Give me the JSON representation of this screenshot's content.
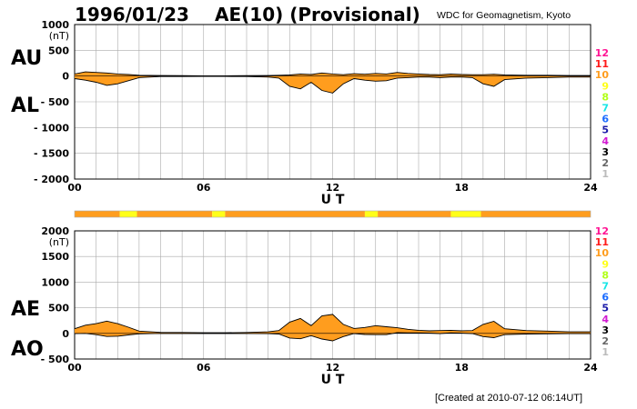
{
  "header": {
    "date": "1996/01/23",
    "title": "AE(10) (Provisional)",
    "source": "WDC for Geomagnetism, Kyoto"
  },
  "footer": {
    "created": "[Created at 2010-07-12 06:14UT]"
  },
  "colors": {
    "fill": "#ff9d1e",
    "fill_high": "#ffff19",
    "line": "#000000",
    "grid": "#aaaaaa"
  },
  "level_legend": [
    {
      "label": "12",
      "color": "#ff1493"
    },
    {
      "label": "11",
      "color": "#ff1a1a"
    },
    {
      "label": "10",
      "color": "#ff9d1e"
    },
    {
      "label": "9",
      "color": "#ffff19"
    },
    {
      "label": "8",
      "color": "#b2ff19"
    },
    {
      "label": "7",
      "color": "#19e6e6"
    },
    {
      "label": "6",
      "color": "#1a6bff"
    },
    {
      "label": "5",
      "color": "#1a1aa8"
    },
    {
      "label": "4",
      "color": "#d21ad2"
    },
    {
      "label": "3",
      "color": "#000000"
    },
    {
      "label": "2",
      "color": "#666666"
    },
    {
      "label": "1",
      "color": "#bbbbbb"
    }
  ],
  "chart_data": [
    {
      "type": "area",
      "panel": "AU/AL",
      "series_labels": [
        "AU",
        "AL"
      ],
      "xlabel": "U T",
      "ylabel": "(nT)",
      "xlim": [
        0,
        24
      ],
      "ylim": [
        -2000,
        1000
      ],
      "xticks": [
        "00",
        "06",
        "12",
        "18",
        "24"
      ],
      "yticks": [
        "1000",
        "500",
        "0",
        "- 500",
        "- 1000",
        "- 1500",
        "- 2000"
      ],
      "grid": true,
      "series": [
        {
          "name": "AU",
          "x": [
            0,
            0.5,
            1,
            1.5,
            2,
            2.5,
            3,
            4,
            5,
            6,
            7,
            8,
            9,
            9.5,
            10,
            10.5,
            11,
            11.5,
            12,
            12.5,
            13,
            13.5,
            14,
            14.5,
            15,
            15.5,
            16,
            16.5,
            17,
            17.5,
            18,
            18.5,
            19,
            19.5,
            20,
            21,
            22,
            23,
            24
          ],
          "values": [
            40,
            80,
            70,
            60,
            40,
            30,
            15,
            10,
            8,
            5,
            5,
            8,
            10,
            15,
            20,
            40,
            30,
            60,
            40,
            25,
            45,
            35,
            50,
            40,
            70,
            50,
            40,
            30,
            25,
            40,
            30,
            25,
            25,
            35,
            20,
            15,
            15,
            10,
            10
          ]
        },
        {
          "name": "AL",
          "x": [
            0,
            0.5,
            1,
            1.5,
            2,
            2.5,
            3,
            4,
            5,
            6,
            7,
            8,
            9,
            9.5,
            10,
            10.5,
            11,
            11.5,
            12,
            12.5,
            13,
            13.5,
            14,
            14.5,
            15,
            15.5,
            16,
            16.5,
            17,
            17.5,
            18,
            18.5,
            19,
            19.5,
            20,
            21,
            22,
            23,
            24
          ],
          "values": [
            -50,
            -80,
            -120,
            -180,
            -150,
            -90,
            -30,
            -10,
            -10,
            -8,
            -8,
            -10,
            -20,
            -40,
            -200,
            -250,
            -120,
            -280,
            -330,
            -150,
            -50,
            -80,
            -100,
            -90,
            -40,
            -30,
            -20,
            -20,
            -30,
            -20,
            -20,
            -30,
            -150,
            -200,
            -70,
            -40,
            -30,
            -20,
            -20
          ]
        }
      ]
    },
    {
      "type": "area",
      "panel": "AE/AO",
      "series_labels": [
        "AE",
        "AO"
      ],
      "xlabel": "U T",
      "ylabel": "(nT)",
      "xlim": [
        0,
        24
      ],
      "ylim": [
        -500,
        2000
      ],
      "xticks": [
        "00",
        "06",
        "12",
        "18",
        "24"
      ],
      "yticks": [
        "2000",
        "1500",
        "1000",
        "500",
        "0",
        "- 500"
      ],
      "grid": true,
      "series": [
        {
          "name": "AE",
          "x": [
            0,
            0.5,
            1,
            1.5,
            2,
            2.5,
            3,
            4,
            5,
            6,
            7,
            8,
            9,
            9.5,
            10,
            10.5,
            11,
            11.5,
            12,
            12.5,
            13,
            13.5,
            14,
            14.5,
            15,
            15.5,
            16,
            16.5,
            17,
            17.5,
            18,
            18.5,
            19,
            19.5,
            20,
            21,
            22,
            23,
            24
          ],
          "values": [
            90,
            160,
            190,
            240,
            190,
            120,
            45,
            20,
            18,
            13,
            13,
            18,
            30,
            55,
            220,
            290,
            150,
            340,
            370,
            175,
            95,
            115,
            150,
            130,
            110,
            80,
            60,
            50,
            55,
            60,
            50,
            55,
            175,
            235,
            90,
            55,
            45,
            30,
            30
          ]
        },
        {
          "name": "AO",
          "x": [
            0,
            0.5,
            1,
            1.5,
            2,
            2.5,
            3,
            4,
            5,
            6,
            7,
            8,
            9,
            9.5,
            10,
            10.5,
            11,
            11.5,
            12,
            12.5,
            13,
            13.5,
            14,
            14.5,
            15,
            15.5,
            16,
            16.5,
            17,
            17.5,
            18,
            18.5,
            19,
            19.5,
            20,
            21,
            22,
            23,
            24
          ],
          "values": [
            -5,
            0,
            -25,
            -60,
            -55,
            -30,
            -8,
            0,
            -1,
            -2,
            -2,
            -1,
            -5,
            -12,
            -90,
            -105,
            -45,
            -110,
            -145,
            -62,
            -3,
            -22,
            -25,
            -25,
            15,
            10,
            10,
            5,
            -3,
            10,
            5,
            -3,
            -62,
            -83,
            -25,
            -13,
            -8,
            -5,
            -5
          ]
        }
      ]
    }
  ],
  "activity_bar": {
    "segments": [
      {
        "start": 0,
        "end": 2.1,
        "level": "10"
      },
      {
        "start": 2.1,
        "end": 2.9,
        "level": "9"
      },
      {
        "start": 2.9,
        "end": 6.4,
        "level": "10"
      },
      {
        "start": 6.4,
        "end": 7.0,
        "level": "9"
      },
      {
        "start": 7.0,
        "end": 13.5,
        "level": "10"
      },
      {
        "start": 13.5,
        "end": 14.1,
        "level": "9"
      },
      {
        "start": 14.1,
        "end": 17.5,
        "level": "10"
      },
      {
        "start": 17.5,
        "end": 18.9,
        "level": "9"
      },
      {
        "start": 18.9,
        "end": 24,
        "level": "10"
      }
    ]
  }
}
